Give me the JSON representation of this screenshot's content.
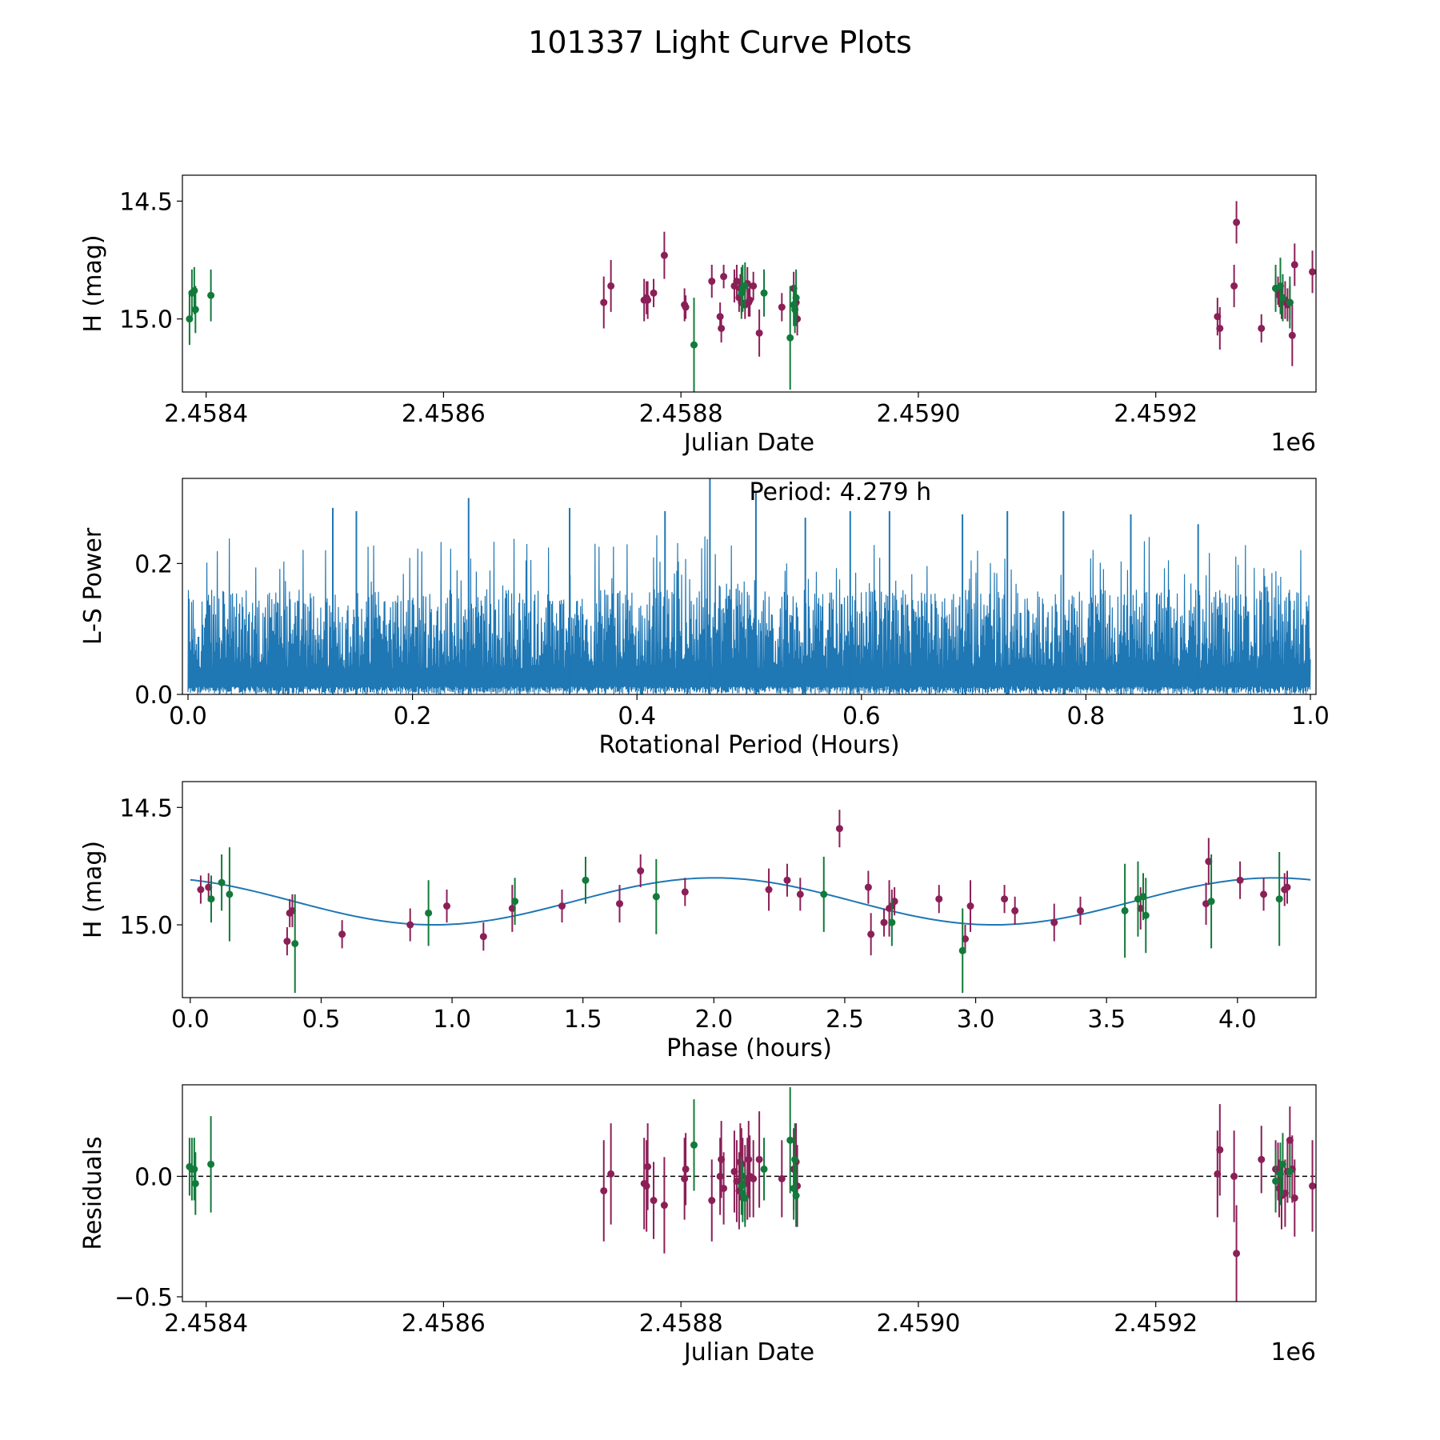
{
  "figure": {
    "title": "101337 Light Curve Plots"
  },
  "colors": {
    "r_band": "#8b1f57",
    "g_band": "#127a3a",
    "power": "#1f77b4",
    "fit": "#1f77b4",
    "axis": "#000000",
    "zero_line": "#000000"
  },
  "chart_data": [
    {
      "type": "scatter",
      "title": "",
      "xlabel": "Julian Date",
      "ylabel": "H (mag)",
      "x_offset_label": "1e6",
      "xlim": [
        2.45838,
        2.459335
      ],
      "ylim": [
        15.31,
        14.39
      ],
      "yaxis_inverted": true,
      "xticks": [
        2.4584,
        2.4586,
        2.4588,
        2.459,
        2.4592
      ],
      "xtick_labels": [
        "2.4584",
        "2.4586",
        "2.4588",
        "2.4590",
        "2.4592"
      ],
      "yticks": [
        15.0,
        14.5
      ],
      "ytick_labels": [
        "15.0",
        "14.5"
      ],
      "series": [
        {
          "name": "r",
          "color": "#8b1f57",
          "x": [
            2.458735,
            2.458741,
            2.458769,
            2.458771,
            2.458772,
            2.458777,
            2.458786,
            2.458803,
            2.458804,
            2.458826,
            2.458833,
            2.458834,
            2.458836,
            2.458845,
            2.458847,
            2.458849,
            2.45885,
            2.458851,
            2.458852,
            2.458854,
            2.458856,
            2.458857,
            2.458858,
            2.458861,
            2.458866,
            2.458885,
            2.458895,
            2.458897,
            2.458898,
            2.459252,
            2.459254,
            2.459266,
            2.459268,
            2.459289,
            2.459301,
            2.459303,
            2.459304,
            2.459306,
            2.459309,
            2.459311,
            2.459313,
            2.459315,
            2.459317,
            2.459332
          ],
          "y": [
            14.93,
            14.86,
            14.92,
            14.91,
            14.92,
            14.89,
            14.73,
            14.94,
            14.95,
            14.84,
            14.99,
            15.04,
            14.82,
            14.86,
            14.84,
            14.91,
            14.87,
            14.93,
            14.88,
            14.94,
            14.85,
            14.93,
            14.92,
            14.86,
            15.06,
            14.95,
            14.87,
            14.93,
            15.0,
            14.99,
            15.04,
            14.86,
            14.59,
            15.04,
            14.87,
            14.88,
            14.9,
            14.93,
            14.92,
            14.94,
            14.93,
            15.07,
            14.77,
            14.8
          ],
          "yerr": [
            0.11,
            0.11,
            0.09,
            0.07,
            0.08,
            0.06,
            0.1,
            0.07,
            0.05,
            0.07,
            0.06,
            0.06,
            0.05,
            0.07,
            0.07,
            0.06,
            0.06,
            0.05,
            0.06,
            0.06,
            0.07,
            0.06,
            0.07,
            0.06,
            0.1,
            0.06,
            0.07,
            0.06,
            0.07,
            0.08,
            0.09,
            0.09,
            0.09,
            0.06,
            0.06,
            0.06,
            0.05,
            0.07,
            0.08,
            0.07,
            0.07,
            0.13,
            0.09,
            0.09
          ]
        },
        {
          "name": "g",
          "color": "#127a3a",
          "x": [
            2.458386,
            2.458388,
            2.45839,
            2.458391,
            2.458404,
            2.458811,
            2.458851,
            2.458852,
            2.458854,
            2.45887,
            2.458892,
            2.458895,
            2.458896,
            2.458897,
            2.459301,
            2.459305,
            2.459307,
            2.459313
          ],
          "y": [
            15.0,
            14.89,
            14.88,
            14.96,
            14.9,
            15.11,
            14.89,
            14.87,
            14.86,
            14.89,
            15.08,
            14.94,
            14.96,
            14.91,
            14.87,
            14.86,
            14.91,
            14.93
          ],
          "yerr": [
            0.11,
            0.1,
            0.1,
            0.1,
            0.11,
            0.2,
            0.11,
            0.1,
            0.1,
            0.1,
            0.22,
            0.09,
            0.1,
            0.12,
            0.1,
            0.12,
            0.1,
            0.11
          ]
        }
      ]
    },
    {
      "type": "line",
      "title": "",
      "xlabel": "Rotational Period (Hours)",
      "ylabel": "L-S Power",
      "annotation": "Period: 4.279 h",
      "xlim": [
        -0.005,
        1.005
      ],
      "ylim": [
        0,
        0.33
      ],
      "xticks": [
        0.0,
        0.2,
        0.4,
        0.6,
        0.8,
        1.0
      ],
      "xtick_labels": [
        "0.0",
        "0.2",
        "0.4",
        "0.6",
        "0.8",
        "1.0"
      ],
      "yticks": [
        0.0,
        0.2
      ],
      "ytick_labels": [
        "0.0",
        "0.2"
      ],
      "x_range": [
        0.0,
        1.0
      ],
      "samples": 2800,
      "baseline_max": 0.16,
      "noise_max": 0.3,
      "peak_x": [
        0.129,
        0.15,
        0.25,
        0.34,
        0.425,
        0.465,
        0.506,
        0.55,
        0.59,
        0.625,
        0.69,
        0.73,
        0.78,
        0.84,
        0.9
      ],
      "peak_y": [
        0.285,
        0.28,
        0.3,
        0.285,
        0.28,
        0.33,
        0.31,
        0.27,
        0.28,
        0.28,
        0.275,
        0.28,
        0.28,
        0.275,
        0.26
      ],
      "max_power_x": 0.465,
      "max_power_y": 0.33
    },
    {
      "type": "scatter",
      "title": "",
      "xlabel": "Phase (hours)",
      "ylabel": "H (mag)",
      "xlim": [
        -0.03,
        4.3
      ],
      "ylim": [
        15.31,
        14.39
      ],
      "yaxis_inverted": true,
      "xticks": [
        0.0,
        0.5,
        1.0,
        1.5,
        2.0,
        2.5,
        3.0,
        3.5,
        4.0
      ],
      "xtick_labels": [
        "0.0",
        "0.5",
        "1.0",
        "1.5",
        "2.0",
        "2.5",
        "3.0",
        "3.5",
        "4.0"
      ],
      "yticks": [
        15.0,
        14.5
      ],
      "ytick_labels": [
        "15.0",
        "14.5"
      ],
      "model": {
        "period_h": 4.279,
        "mean": 14.9,
        "amplitude": 0.1,
        "phase_peak_h": 0.93,
        "x_range": [
          0.0,
          4.279
        ]
      },
      "series": [
        {
          "name": "r",
          "color": "#8b1f57",
          "x": [
            0.04,
            0.07,
            0.37,
            0.38,
            0.39,
            0.58,
            0.84,
            0.98,
            1.12,
            1.23,
            1.42,
            1.64,
            1.72,
            1.89,
            2.21,
            2.28,
            2.33,
            2.48,
            2.59,
            2.6,
            2.65,
            2.67,
            2.68,
            2.69,
            2.86,
            2.96,
            2.98,
            3.11,
            3.15,
            3.3,
            3.4,
            3.63,
            3.88,
            3.89,
            4.01,
            4.1,
            4.18,
            4.19
          ],
          "y": [
            14.85,
            14.84,
            15.07,
            14.95,
            14.94,
            15.04,
            15.0,
            14.92,
            15.05,
            14.93,
            14.92,
            14.91,
            14.77,
            14.86,
            14.85,
            14.81,
            14.87,
            14.59,
            14.84,
            15.04,
            14.99,
            14.93,
            14.92,
            14.9,
            14.89,
            15.06,
            14.92,
            14.89,
            14.94,
            14.99,
            14.94,
            14.93,
            14.91,
            14.73,
            14.81,
            14.87,
            14.85,
            14.84
          ],
          "yerr": [
            0.06,
            0.06,
            0.06,
            0.06,
            0.07,
            0.06,
            0.07,
            0.07,
            0.06,
            0.1,
            0.07,
            0.08,
            0.07,
            0.06,
            0.09,
            0.07,
            0.07,
            0.08,
            0.07,
            0.09,
            0.06,
            0.12,
            0.07,
            0.06,
            0.06,
            0.06,
            0.11,
            0.06,
            0.06,
            0.08,
            0.06,
            0.09,
            0.09,
            0.1,
            0.08,
            0.07,
            0.07,
            0.07
          ]
        },
        {
          "name": "g",
          "color": "#127a3a",
          "x": [
            0.08,
            0.12,
            0.15,
            0.4,
            0.91,
            1.24,
            1.51,
            1.78,
            2.42,
            2.68,
            2.95,
            3.57,
            3.62,
            3.64,
            3.65,
            3.9,
            4.16
          ],
          "y": [
            14.89,
            14.82,
            14.87,
            15.08,
            14.95,
            14.9,
            14.81,
            14.88,
            14.87,
            14.99,
            15.11,
            14.94,
            14.89,
            14.88,
            14.96,
            14.9,
            14.89
          ],
          "yerr": [
            0.1,
            0.12,
            0.2,
            0.21,
            0.14,
            0.1,
            0.1,
            0.16,
            0.16,
            0.1,
            0.18,
            0.2,
            0.16,
            0.1,
            0.16,
            0.2,
            0.2
          ]
        }
      ]
    },
    {
      "type": "scatter",
      "title": "",
      "xlabel": "Julian Date",
      "ylabel": "Residuals",
      "x_offset_label": "1e6",
      "xlim": [
        2.45838,
        2.459335
      ],
      "ylim": [
        -0.52,
        0.38
      ],
      "xticks": [
        2.4584,
        2.4586,
        2.4588,
        2.459,
        2.4592
      ],
      "xtick_labels": [
        "2.4584",
        "2.4586",
        "2.4588",
        "2.4590",
        "2.4592"
      ],
      "yticks": [
        0.0,
        -0.5
      ],
      "ytick_labels": [
        "0.0",
        "−0.5"
      ],
      "reference_line_y": 0.0,
      "series": [
        {
          "name": "r",
          "color": "#8b1f57",
          "x": [
            2.458735,
            2.458741,
            2.458769,
            2.458771,
            2.458772,
            2.458777,
            2.458786,
            2.458803,
            2.458804,
            2.458826,
            2.458833,
            2.458834,
            2.458836,
            2.458845,
            2.458847,
            2.458849,
            2.45885,
            2.458851,
            2.458852,
            2.458854,
            2.458856,
            2.458857,
            2.458858,
            2.458861,
            2.458866,
            2.458885,
            2.458895,
            2.458897,
            2.458898,
            2.459252,
            2.459254,
            2.459266,
            2.459268,
            2.459289,
            2.459301,
            2.459303,
            2.459304,
            2.459306,
            2.459309,
            2.459311,
            2.459313,
            2.459315,
            2.459317,
            2.459332
          ],
          "y": [
            -0.06,
            0.01,
            -0.03,
            -0.04,
            0.04,
            -0.1,
            -0.12,
            -0.01,
            0.03,
            -0.1,
            0.0,
            0.07,
            -0.05,
            0.02,
            -0.02,
            -0.06,
            0.06,
            0.05,
            0.0,
            -0.03,
            -0.01,
            0.07,
            0.0,
            -0.01,
            0.07,
            -0.01,
            0.03,
            0.06,
            -0.04,
            0.01,
            0.11,
            0.0,
            -0.32,
            0.07,
            0.03,
            0.02,
            -0.05,
            -0.08,
            -0.07,
            0.02,
            0.15,
            0.03,
            -0.09,
            -0.04
          ],
          "yerr": [
            0.21,
            0.21,
            0.19,
            0.19,
            0.18,
            0.16,
            0.2,
            0.17,
            0.15,
            0.17,
            0.16,
            0.16,
            0.15,
            0.17,
            0.17,
            0.16,
            0.16,
            0.15,
            0.16,
            0.16,
            0.17,
            0.16,
            0.17,
            0.16,
            0.2,
            0.16,
            0.17,
            0.16,
            0.17,
            0.18,
            0.19,
            0.19,
            0.2,
            0.14,
            0.12,
            0.12,
            0.12,
            0.14,
            0.14,
            0.13,
            0.14,
            0.14,
            0.16,
            0.19
          ]
        },
        {
          "name": "g",
          "color": "#127a3a",
          "x": [
            2.458386,
            2.458388,
            2.45839,
            2.458391,
            2.458404,
            2.458811,
            2.458851,
            2.458852,
            2.458854,
            2.45887,
            2.458892,
            2.458895,
            2.458896,
            2.458897,
            2.459301,
            2.459305,
            2.459307,
            2.459313
          ],
          "y": [
            0.04,
            0.03,
            0.03,
            -0.03,
            0.05,
            0.13,
            -0.04,
            -0.07,
            -0.09,
            0.03,
            0.15,
            -0.05,
            0.07,
            -0.08,
            -0.02,
            0.01,
            0.05,
            0.02
          ],
          "yerr": [
            0.12,
            0.13,
            0.13,
            0.13,
            0.2,
            0.19,
            0.12,
            0.12,
            0.12,
            0.13,
            0.22,
            0.13,
            0.15,
            0.13,
            0.13,
            0.13,
            0.13,
            0.11
          ]
        }
      ]
    }
  ]
}
